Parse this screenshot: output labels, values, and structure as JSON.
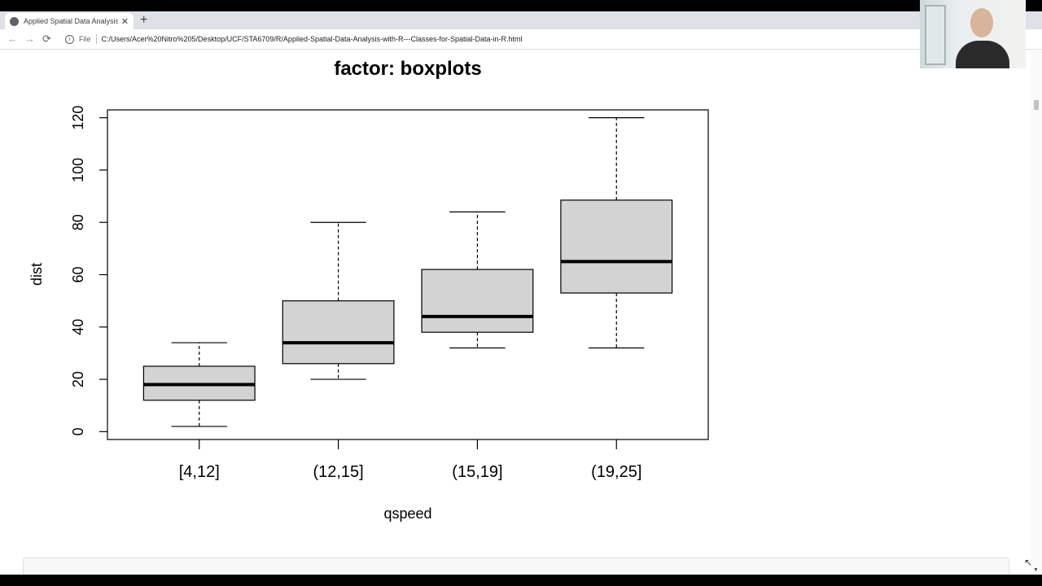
{
  "browser": {
    "tab_title": "Applied Spatial Data Analysis wi",
    "tab_close": "✕",
    "new_tab": "+",
    "back": "←",
    "forward": "→",
    "reload": "⟳",
    "info": "i",
    "file_label": "File",
    "url": "C:/Users/Acer%20Nitro%205/Desktop/UCF/STA6709/R/Applied-Spatial-Data-Analysis-with-R---Classes-for-Spatial-Data-in-R.html"
  },
  "icons": {
    "tab_favicon": "globe-icon",
    "info": "info-icon",
    "cursor": "mouse-pointer-icon"
  },
  "chart_data": {
    "type": "boxplot",
    "title": "factor: boxplots",
    "xlabel": "qspeed",
    "ylabel": "dist",
    "categories": [
      "[4,12]",
      "(12,15]",
      "(15,19]",
      "(19,25]"
    ],
    "ylim": [
      -3,
      123
    ],
    "yticks": [
      0,
      20,
      40,
      60,
      80,
      100,
      120
    ],
    "boxes": [
      {
        "whisker_low": 2,
        "q1": 12,
        "median": 18,
        "q3": 25,
        "whisker_high": 34
      },
      {
        "whisker_low": 20,
        "q1": 26,
        "median": 34,
        "q3": 50,
        "whisker_high": 80
      },
      {
        "whisker_low": 32,
        "q1": 38,
        "median": 44,
        "q3": 62,
        "whisker_high": 84
      },
      {
        "whisker_low": 32,
        "q1": 53,
        "median": 65,
        "q3": 88.5,
        "whisker_high": 120
      }
    ],
    "box_fill": "#d3d3d3",
    "grid": false
  }
}
